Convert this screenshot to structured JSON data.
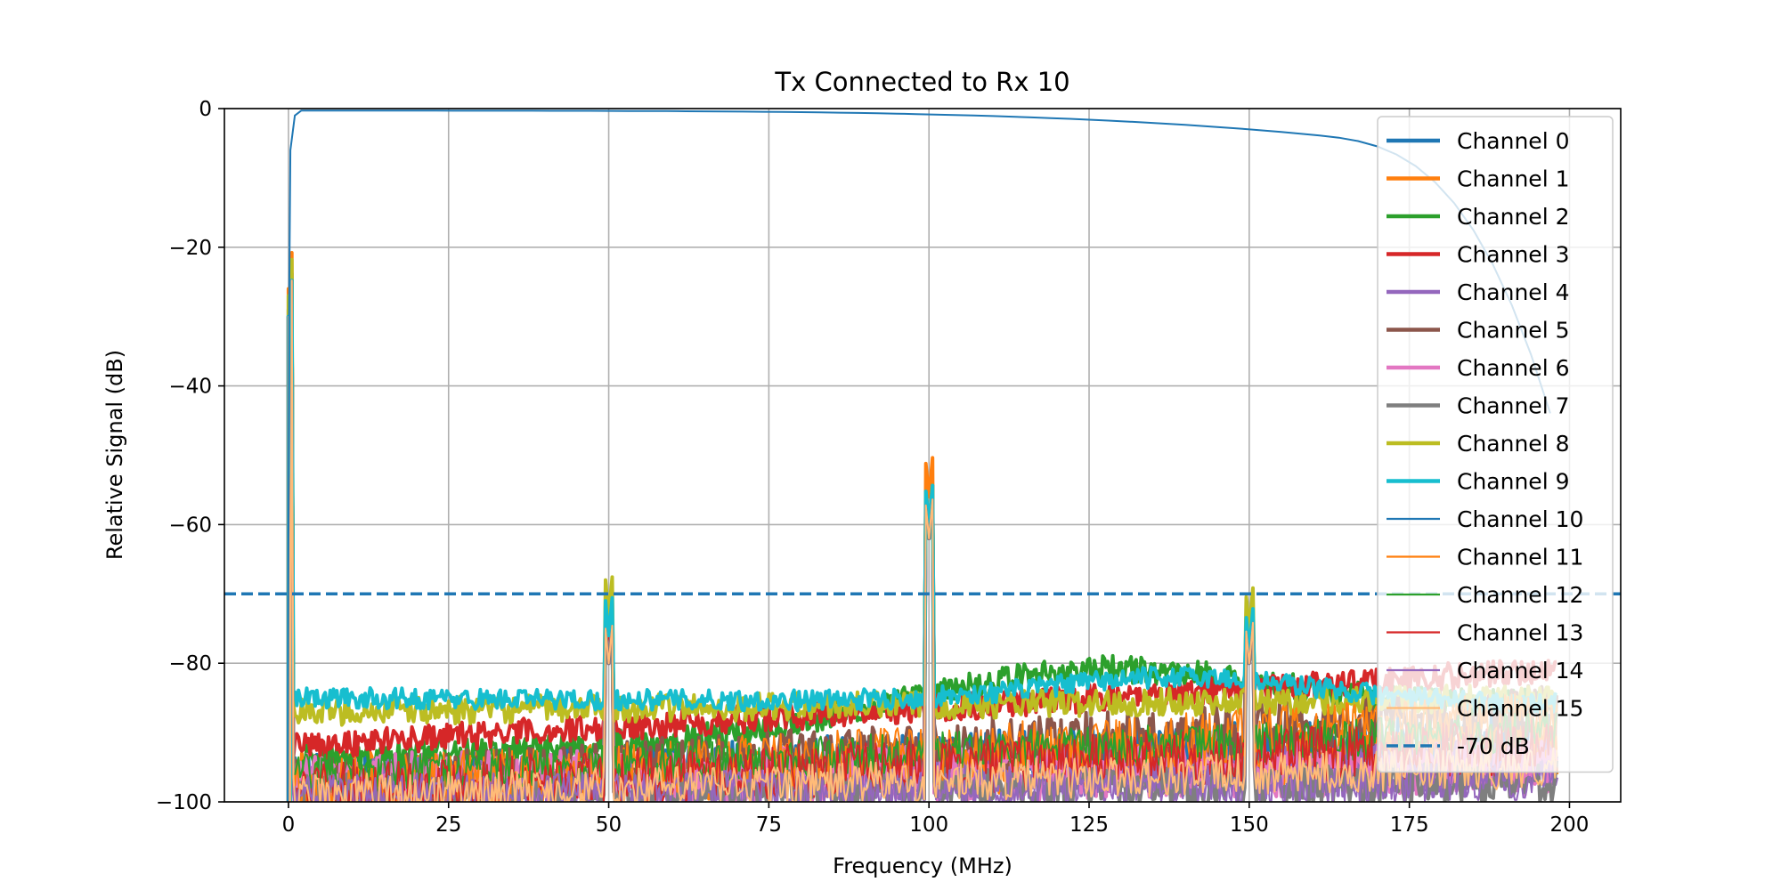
{
  "chart_data": {
    "type": "line",
    "title": "Tx Connected to Rx 10",
    "xlabel": "Frequency (MHz)",
    "ylabel": "Relative Signal (dB)",
    "xlim": [
      -10,
      208
    ],
    "ylim": [
      -100,
      0
    ],
    "xticks": [
      0,
      25,
      50,
      75,
      100,
      125,
      150,
      175,
      200
    ],
    "yticks": [
      0,
      -20,
      -40,
      -60,
      -80,
      -100
    ],
    "grid": true,
    "legend_position": "upper right",
    "threshold": {
      "name": "-70 dB",
      "value": -70,
      "color": "#1f77b4",
      "style": "dashed"
    },
    "series": [
      {
        "name": "Channel 0",
        "color": "#1f77b4",
        "width": 4,
        "base_start": -97,
        "base_end": -91,
        "noise": 4,
        "peaks": [
          [
            0,
            -29
          ],
          [
            50,
            -80
          ],
          [
            100,
            -62
          ],
          [
            150,
            -80
          ]
        ]
      },
      {
        "name": "Channel 1",
        "color": "#ff7f0e",
        "width": 4,
        "base_start": -97,
        "base_end": -93,
        "noise": 4,
        "peaks": [
          [
            0,
            -26
          ],
          [
            50,
            -76
          ],
          [
            100,
            -56
          ],
          [
            150,
            -77
          ]
        ]
      },
      {
        "name": "Channel 2",
        "color": "#2ca02c",
        "width": 4,
        "base_start": -94,
        "base_end": -86,
        "noise": 2,
        "bump": [
          125,
          -81,
          40
        ],
        "peaks": [
          [
            0,
            -30
          ],
          [
            50,
            -78
          ],
          [
            100,
            -62
          ],
          [
            150,
            -79
          ]
        ]
      },
      {
        "name": "Channel 3",
        "color": "#d62728",
        "width": 4,
        "base_start": -92,
        "base_end": -81,
        "noise": 2,
        "peaks": [
          [
            0,
            -30
          ],
          [
            50,
            -78
          ],
          [
            100,
            -60
          ],
          [
            150,
            -79
          ]
        ]
      },
      {
        "name": "Channel 4",
        "color": "#9467bd",
        "width": 4,
        "base_start": -98,
        "base_end": -95,
        "noise": 4,
        "peaks": [
          [
            0,
            -30
          ],
          [
            50,
            -80
          ],
          [
            100,
            -62
          ],
          [
            150,
            -80
          ]
        ]
      },
      {
        "name": "Channel 5",
        "color": "#8c564b",
        "width": 4,
        "base_start": -98,
        "base_end": -87,
        "noise": 4,
        "peaks": [
          [
            0,
            -30
          ],
          [
            50,
            -80
          ],
          [
            100,
            -62
          ],
          [
            150,
            -79
          ]
        ]
      },
      {
        "name": "Channel 6",
        "color": "#e377c2",
        "width": 4,
        "base_start": -97,
        "base_end": -95,
        "noise": 4,
        "peaks": [
          [
            0,
            -30
          ],
          [
            50,
            -80
          ],
          [
            100,
            -62
          ],
          [
            150,
            -80
          ]
        ]
      },
      {
        "name": "Channel 7",
        "color": "#7f7f7f",
        "width": 4,
        "base_start": -99,
        "base_end": -97,
        "noise": 3,
        "peaks": [
          [
            0,
            -30
          ],
          [
            50,
            -80
          ],
          [
            100,
            -62
          ],
          [
            150,
            -80
          ]
        ]
      },
      {
        "name": "Channel 8",
        "color": "#bcbd22",
        "width": 4,
        "base_start": -87,
        "base_end": -85,
        "noise": 2,
        "peaks": [
          [
            0,
            -27
          ],
          [
            50,
            -73
          ],
          [
            100,
            -60
          ],
          [
            150,
            -75
          ]
        ]
      },
      {
        "name": "Channel 9",
        "color": "#17becf",
        "width": 4,
        "base_start": -85,
        "base_end": -86,
        "noise": 1.5,
        "bump": [
          140,
          -82,
          30
        ],
        "peaks": [
          [
            0,
            -30
          ],
          [
            50,
            -76
          ],
          [
            100,
            -60
          ],
          [
            150,
            -78
          ]
        ]
      },
      {
        "name": "Channel 10",
        "color": "#1f77b4",
        "width": 2,
        "kind": "reference"
      },
      {
        "name": "Channel 11",
        "color": "#ff7f0e",
        "width": 2,
        "base_start": -98,
        "base_end": -88,
        "noise": 4,
        "peaks": [
          [
            0,
            -30
          ],
          [
            50,
            -80
          ],
          [
            100,
            -62
          ],
          [
            150,
            -80
          ]
        ]
      },
      {
        "name": "Channel 12",
        "color": "#2ca02c",
        "width": 2,
        "base_start": -96,
        "base_end": -90,
        "noise": 3,
        "peaks": [
          [
            0,
            -30
          ],
          [
            50,
            -80
          ],
          [
            100,
            -62
          ],
          [
            150,
            -80
          ]
        ]
      },
      {
        "name": "Channel 13",
        "color": "#d62728",
        "width": 2,
        "base_start": -98,
        "base_end": -92,
        "noise": 4,
        "peaks": [
          [
            0,
            -30
          ],
          [
            50,
            -80
          ],
          [
            100,
            -62
          ],
          [
            150,
            -80
          ]
        ]
      },
      {
        "name": "Channel 14",
        "color": "#9467bd",
        "width": 2,
        "base_start": -99,
        "base_end": -97,
        "noise": 3,
        "peaks": [
          [
            0,
            -30
          ],
          [
            50,
            -80
          ],
          [
            100,
            -62
          ],
          [
            150,
            -80
          ]
        ]
      },
      {
        "name": "Channel 15",
        "color": "#ffbb78",
        "width": 2,
        "base_start": -99,
        "base_end": -95,
        "noise": 3,
        "peaks": [
          [
            0,
            -30
          ],
          [
            50,
            -80
          ],
          [
            100,
            -62
          ],
          [
            150,
            -80
          ]
        ]
      }
    ]
  }
}
